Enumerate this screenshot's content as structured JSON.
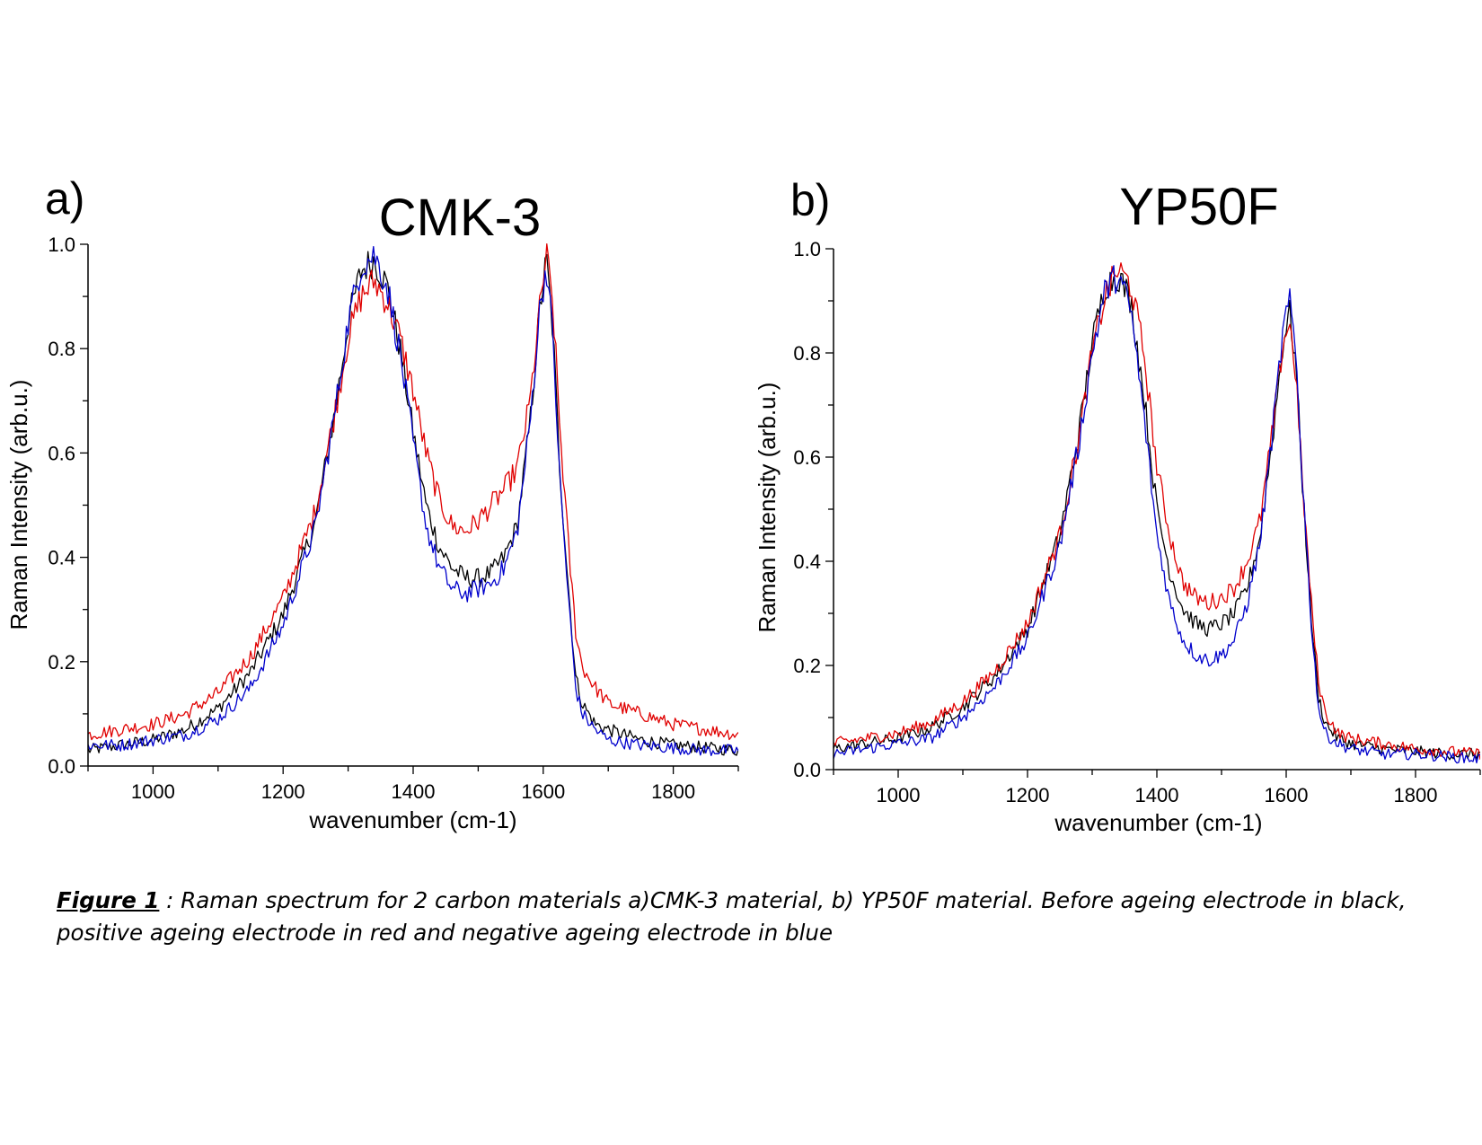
{
  "chart_data": [
    {
      "type": "line",
      "panel_label": "a)",
      "title": "CMK-3",
      "xlabel": "wavenumber (cm-1)",
      "ylabel": "Raman Intensity (arb.u.)",
      "xlim": [
        900,
        1900
      ],
      "ylim": [
        0,
        1.0
      ],
      "xticks": [
        1000,
        1200,
        1400,
        1600,
        1800
      ],
      "yticks": [
        "0.0",
        "0.2",
        "0.4",
        "0.6",
        "0.8",
        "1.0"
      ],
      "grid": false,
      "noise": 0.014,
      "series": [
        {
          "color": "#000000",
          "x": [
            900,
            950,
            1000,
            1050,
            1100,
            1150,
            1200,
            1250,
            1280,
            1300,
            1320,
            1340,
            1360,
            1380,
            1400,
            1420,
            1440,
            1460,
            1480,
            1500,
            1520,
            1540,
            1560,
            1580,
            1595,
            1605,
            1615,
            1625,
            1640,
            1650,
            1660,
            1680,
            1700,
            1750,
            1800,
            1850,
            1900
          ],
          "y": [
            0.03,
            0.04,
            0.05,
            0.07,
            0.11,
            0.18,
            0.29,
            0.47,
            0.68,
            0.85,
            0.95,
            0.97,
            0.92,
            0.8,
            0.64,
            0.5,
            0.42,
            0.38,
            0.36,
            0.36,
            0.37,
            0.4,
            0.46,
            0.66,
            0.88,
            0.97,
            0.83,
            0.58,
            0.32,
            0.17,
            0.12,
            0.08,
            0.07,
            0.05,
            0.04,
            0.035,
            0.03
          ]
        },
        {
          "color": "#e00000",
          "x": [
            900,
            950,
            1000,
            1050,
            1100,
            1150,
            1200,
            1250,
            1280,
            1300,
            1320,
            1340,
            1360,
            1380,
            1400,
            1420,
            1440,
            1460,
            1480,
            1500,
            1520,
            1540,
            1560,
            1580,
            1595,
            1605,
            1615,
            1625,
            1640,
            1650,
            1660,
            1680,
            1700,
            1750,
            1800,
            1850,
            1900
          ],
          "y": [
            0.06,
            0.07,
            0.08,
            0.1,
            0.14,
            0.21,
            0.32,
            0.49,
            0.68,
            0.82,
            0.9,
            0.93,
            0.89,
            0.82,
            0.72,
            0.6,
            0.51,
            0.46,
            0.45,
            0.47,
            0.5,
            0.53,
            0.57,
            0.7,
            0.88,
            0.98,
            0.88,
            0.66,
            0.4,
            0.26,
            0.19,
            0.15,
            0.12,
            0.1,
            0.08,
            0.07,
            0.06
          ]
        },
        {
          "color": "#0000cc",
          "x": [
            900,
            950,
            1000,
            1050,
            1100,
            1150,
            1200,
            1250,
            1280,
            1300,
            1320,
            1340,
            1360,
            1380,
            1400,
            1420,
            1440,
            1460,
            1480,
            1500,
            1520,
            1540,
            1560,
            1580,
            1595,
            1605,
            1615,
            1625,
            1640,
            1650,
            1660,
            1680,
            1700,
            1750,
            1800,
            1850,
            1900
          ],
          "y": [
            0.04,
            0.04,
            0.05,
            0.06,
            0.09,
            0.15,
            0.27,
            0.46,
            0.68,
            0.85,
            0.96,
            0.98,
            0.92,
            0.79,
            0.62,
            0.46,
            0.38,
            0.34,
            0.33,
            0.34,
            0.35,
            0.38,
            0.45,
            0.66,
            0.88,
            0.96,
            0.82,
            0.56,
            0.3,
            0.15,
            0.1,
            0.07,
            0.05,
            0.04,
            0.035,
            0.03,
            0.03
          ]
        }
      ]
    },
    {
      "type": "line",
      "panel_label": "b)",
      "title": "YP50F",
      "xlabel": "wavenumber (cm-1)",
      "ylabel": "Raman Intensity (arb.u.)",
      "xlim": [
        900,
        1900
      ],
      "ylim": [
        0,
        1.0
      ],
      "xticks": [
        1000,
        1200,
        1400,
        1600,
        1800
      ],
      "yticks": [
        "0.0",
        "0.2",
        "0.4",
        "0.6",
        "0.8",
        "1.0"
      ],
      "grid": false,
      "noise": 0.013,
      "series": [
        {
          "color": "#000000",
          "x": [
            900,
            950,
            1000,
            1050,
            1100,
            1150,
            1200,
            1250,
            1280,
            1300,
            1320,
            1340,
            1360,
            1380,
            1400,
            1420,
            1440,
            1460,
            1480,
            1500,
            1520,
            1540,
            1560,
            1580,
            1595,
            1605,
            1615,
            1625,
            1640,
            1650,
            1660,
            1680,
            1700,
            1750,
            1800,
            1850,
            1900
          ],
          "y": [
            0.04,
            0.05,
            0.06,
            0.08,
            0.12,
            0.18,
            0.27,
            0.45,
            0.65,
            0.82,
            0.93,
            0.95,
            0.9,
            0.72,
            0.5,
            0.38,
            0.31,
            0.28,
            0.27,
            0.28,
            0.3,
            0.35,
            0.45,
            0.65,
            0.82,
            0.88,
            0.78,
            0.55,
            0.27,
            0.14,
            0.09,
            0.06,
            0.05,
            0.04,
            0.035,
            0.03,
            0.03
          ]
        },
        {
          "color": "#e00000",
          "x": [
            900,
            950,
            1000,
            1050,
            1100,
            1150,
            1200,
            1250,
            1280,
            1300,
            1320,
            1340,
            1360,
            1380,
            1400,
            1420,
            1440,
            1460,
            1480,
            1500,
            1520,
            1540,
            1560,
            1580,
            1595,
            1605,
            1615,
            1625,
            1640,
            1650,
            1660,
            1680,
            1700,
            1750,
            1800,
            1850,
            1900
          ],
          "y": [
            0.05,
            0.06,
            0.07,
            0.09,
            0.13,
            0.19,
            0.28,
            0.45,
            0.64,
            0.8,
            0.91,
            0.96,
            0.93,
            0.8,
            0.58,
            0.45,
            0.36,
            0.33,
            0.32,
            0.33,
            0.35,
            0.4,
            0.48,
            0.66,
            0.82,
            0.86,
            0.76,
            0.55,
            0.3,
            0.17,
            0.11,
            0.07,
            0.06,
            0.05,
            0.04,
            0.035,
            0.03
          ]
        },
        {
          "color": "#0000cc",
          "x": [
            900,
            950,
            1000,
            1050,
            1100,
            1150,
            1200,
            1250,
            1280,
            1300,
            1320,
            1340,
            1360,
            1380,
            1400,
            1420,
            1440,
            1460,
            1480,
            1500,
            1520,
            1540,
            1560,
            1580,
            1595,
            1605,
            1615,
            1625,
            1640,
            1650,
            1660,
            1680,
            1700,
            1750,
            1800,
            1850,
            1900
          ],
          "y": [
            0.03,
            0.04,
            0.05,
            0.06,
            0.1,
            0.16,
            0.25,
            0.43,
            0.63,
            0.8,
            0.92,
            0.95,
            0.88,
            0.68,
            0.45,
            0.32,
            0.25,
            0.22,
            0.21,
            0.22,
            0.25,
            0.32,
            0.44,
            0.66,
            0.84,
            0.9,
            0.8,
            0.56,
            0.26,
            0.12,
            0.07,
            0.05,
            0.04,
            0.03,
            0.03,
            0.025,
            0.02
          ]
        }
      ]
    }
  ],
  "caption": {
    "figure_ref": "Figure 1",
    "text": " : Raman spectrum for 2 carbon materials a)CMK-3 material, b) YP50F material. Before ageing electrode in black, positive ageing electrode in red and negative ageing electrode in blue"
  }
}
